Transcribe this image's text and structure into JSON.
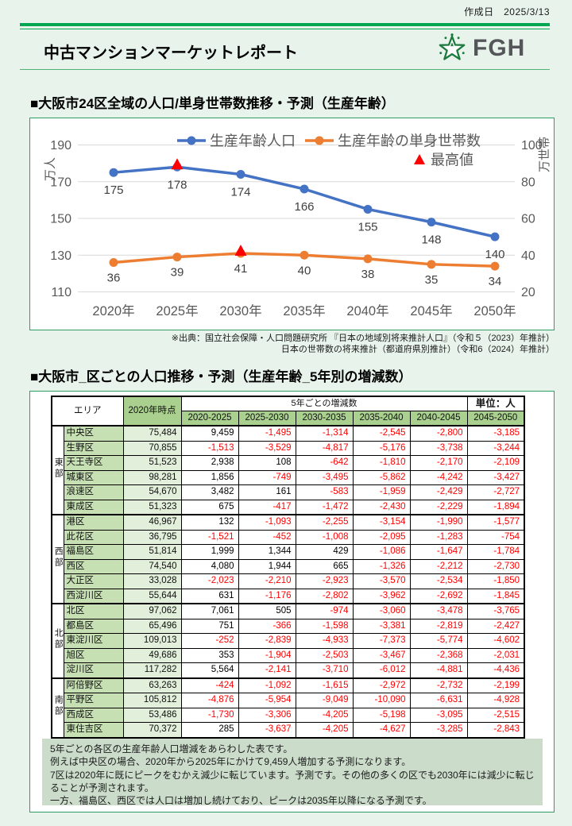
{
  "page": {
    "background": "#e8f4eb",
    "accent_green": "#00a651",
    "panel_border_green": "#2f9e60"
  },
  "header": {
    "created_label": "作成日　2025/3/13",
    "title": "中古マンションマーケットレポート",
    "logo": {
      "text": "FGH",
      "star_color": "#1b7a3d",
      "text_color": "#55565a"
    }
  },
  "section1_title": "■大阪市24区全域の人口/単身世帯数推移・予測（生産年齢）",
  "chart_data": {
    "type": "line",
    "x_labels": [
      "2020年",
      "2025年",
      "2030年",
      "2035年",
      "2040年",
      "2045年",
      "2050年"
    ],
    "series": [
      {
        "name": "生産年齢人口",
        "color": "#4472c4",
        "axis": "left",
        "values": [
          175,
          178,
          174,
          166,
          155,
          148,
          140
        ],
        "peak_index": 1
      },
      {
        "name": "生産年齢の単身世帯数",
        "color": "#ed7d31",
        "axis": "right",
        "values": [
          36,
          39,
          41,
          40,
          38,
          35,
          34
        ],
        "peak_index": 2
      }
    ],
    "peak_marker": {
      "label": "最高値",
      "color": "#ff0000"
    },
    "left_axis": {
      "title": "万人",
      "min": 110,
      "max": 190,
      "ticks": [
        190,
        170,
        150,
        130,
        110
      ]
    },
    "right_axis": {
      "title": "万世帯",
      "min": 20,
      "max": 100,
      "ticks": [
        100,
        80,
        60,
        40,
        20
      ]
    },
    "grid": true,
    "legend_position": "top"
  },
  "source_notes": [
    "※出典：国立社会保障・人口問題研究所 『日本の地域別将来推計人口』（令和５（2023）年推計）",
    "日本の世帯数の将来推計（都道府県別推計）（令和6（2024）年推計）"
  ],
  "section2_title": "■大阪市_区ごとの人口推移・予測（生産年齢_5年別の増減数）",
  "table": {
    "area_header": "エリア",
    "base_header": "2020年時点",
    "span_header": "5年ごとの増減数",
    "unit_header": "単位：人",
    "period_headers": [
      "2020-2025",
      "2025-2030",
      "2030-2035",
      "2035-2040",
      "2040-2045",
      "2045-2050"
    ],
    "groups": [
      {
        "name": "東部",
        "rows": [
          {
            "district": "中央区",
            "base": "75,484",
            "changes": [
              "9,459",
              "-1,495",
              "-1,314",
              "-2,545",
              "-2,800",
              "-3,185"
            ]
          },
          {
            "district": "生野区",
            "base": "70,855",
            "changes": [
              "-1,513",
              "-3,529",
              "-4,817",
              "-5,176",
              "-3,738",
              "-3,244"
            ]
          },
          {
            "district": "天王寺区",
            "base": "51,523",
            "changes": [
              "2,938",
              "108",
              "-642",
              "-1,810",
              "-2,170",
              "-2,109"
            ]
          },
          {
            "district": "城東区",
            "base": "98,281",
            "changes": [
              "1,856",
              "-749",
              "-3,495",
              "-5,862",
              "-4,242",
              "-3,427"
            ]
          },
          {
            "district": "浪速区",
            "base": "54,670",
            "changes": [
              "3,482",
              "161",
              "-583",
              "-1,959",
              "-2,429",
              "-2,727"
            ]
          },
          {
            "district": "東成区",
            "base": "51,323",
            "changes": [
              "675",
              "-417",
              "-1,472",
              "-2,430",
              "-2,229",
              "-1,894"
            ]
          }
        ]
      },
      {
        "name": "西部",
        "rows": [
          {
            "district": "港区",
            "base": "46,967",
            "changes": [
              "132",
              "-1,093",
              "-2,255",
              "-3,154",
              "-1,990",
              "-1,577"
            ]
          },
          {
            "district": "此花区",
            "base": "36,795",
            "changes": [
              "-1,521",
              "-452",
              "-1,008",
              "-2,095",
              "-1,283",
              "-754"
            ]
          },
          {
            "district": "福島区",
            "base": "51,814",
            "changes": [
              "1,999",
              "1,344",
              "429",
              "-1,086",
              "-1,647",
              "-1,784"
            ]
          },
          {
            "district": "西区",
            "base": "74,540",
            "changes": [
              "4,080",
              "1,944",
              "665",
              "-1,326",
              "-2,212",
              "-2,730"
            ]
          },
          {
            "district": "大正区",
            "base": "33,028",
            "changes": [
              "-2,023",
              "-2,210",
              "-2,923",
              "-3,570",
              "-2,534",
              "-1,850"
            ]
          },
          {
            "district": "西淀川区",
            "base": "55,644",
            "changes": [
              "631",
              "-1,176",
              "-2,802",
              "-3,962",
              "-2,692",
              "-1,845"
            ]
          }
        ]
      },
      {
        "name": "北部",
        "rows": [
          {
            "district": "北区",
            "base": "97,062",
            "changes": [
              "7,061",
              "505",
              "-974",
              "-3,060",
              "-3,478",
              "-3,765"
            ]
          },
          {
            "district": "都島区",
            "base": "65,496",
            "changes": [
              "751",
              "-366",
              "-1,598",
              "-3,381",
              "-2,819",
              "-2,427"
            ]
          },
          {
            "district": "東淀川区",
            "base": "109,013",
            "changes": [
              "-252",
              "-2,839",
              "-4,933",
              "-7,373",
              "-5,774",
              "-4,602"
            ]
          },
          {
            "district": "旭区",
            "base": "49,686",
            "changes": [
              "353",
              "-1,904",
              "-2,503",
              "-3,467",
              "-2,368",
              "-2,031"
            ]
          },
          {
            "district": "淀川区",
            "base": "117,282",
            "changes": [
              "5,564",
              "-2,141",
              "-3,710",
              "-6,012",
              "-4,881",
              "-4,436"
            ]
          }
        ]
      },
      {
        "name": "南部",
        "rows": [
          {
            "district": "阿倍野区",
            "base": "63,263",
            "changes": [
              "-424",
              "-1,092",
              "-1,615",
              "-2,972",
              "-2,732",
              "-2,199"
            ]
          },
          {
            "district": "平野区",
            "base": "105,812",
            "changes": [
              "-4,876",
              "-5,954",
              "-9,049",
              "-10,090",
              "-6,631",
              "-4,928"
            ]
          },
          {
            "district": "西成区",
            "base": "53,486",
            "changes": [
              "-1,730",
              "-3,306",
              "-4,205",
              "-5,198",
              "-3,095",
              "-2,515"
            ]
          },
          {
            "district": "東住吉区",
            "base": "70,372",
            "changes": [
              "285",
              "-3,637",
              "-4,205",
              "-4,627",
              "-3,285",
              "-2,843"
            ]
          }
        ]
      }
    ]
  },
  "footnote": {
    "lines": [
      "5年ごとの各区の生産年齢人口増減をあらわした表です。",
      "例えば中央区の場合、2020年から2025年にかけて9,459人増加する予測になります。",
      "7区は2020年に既にピークをむかえ減少に転じています。予測です。その他の多くの区でも2030年には減少に転じることが予測されます。",
      "一方、福島区、西区では人口は増加し続けており、ピークは2035年以降になる予測です。"
    ]
  }
}
